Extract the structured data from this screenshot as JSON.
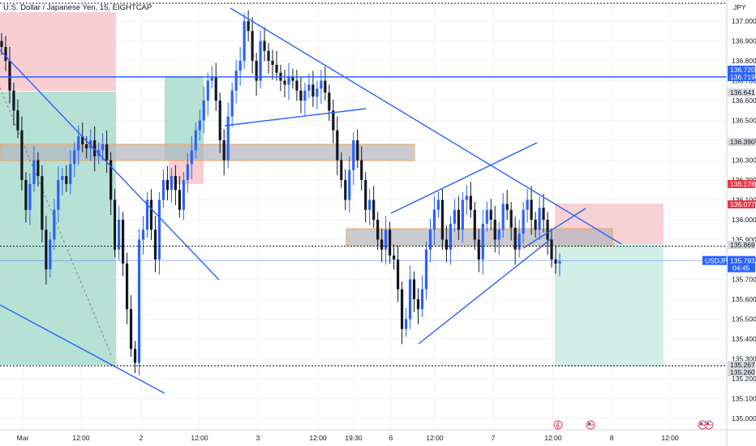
{
  "title": "U.S. Dollar / Japanese Yen, 15, EIGHTCAP",
  "currency": "JPY",
  "chart_data": {
    "type": "candlestick",
    "symbol": "USDJPY",
    "interval": "15",
    "ylim": [
      134.95,
      137.1
    ],
    "y_ticks": [
      "137.000",
      "136.900",
      "136.800",
      "136.700",
      "136.600",
      "136.500",
      "136.400",
      "136.300",
      "136.200",
      "136.100",
      "136.000",
      "135.900",
      "135.800",
      "135.700",
      "135.600",
      "135.500",
      "135.400",
      "135.300",
      "135.200",
      "135.100",
      "135.000"
    ],
    "x_labels": [
      "Mar",
      "12:00",
      "2",
      "12:00",
      "3",
      "12:00",
      "19:30",
      "6",
      "12:00",
      "7",
      "12:00",
      "8",
      "12:00"
    ],
    "price_tags": [
      {
        "label": "136.720",
        "value": 136.72,
        "style": "blue"
      },
      {
        "label": "136.719",
        "value": 136.719,
        "style": "blue"
      },
      {
        "label": "136.641",
        "value": 136.641,
        "style": "dark"
      },
      {
        "label": "136.390",
        "value": 136.39,
        "style": "dark"
      },
      {
        "label": "136.178",
        "value": 136.178,
        "style": "red"
      },
      {
        "label": "136.077",
        "value": 136.077,
        "style": "red"
      },
      {
        "label": "135.869",
        "value": 135.869,
        "style": "dark"
      },
      {
        "label": "135.267",
        "value": 135.267,
        "style": "dark"
      },
      {
        "label": "135.260",
        "value": 135.26,
        "style": "dark"
      }
    ],
    "last_price": {
      "symbol": "USDJPY",
      "value": "135.793",
      "countdown": "04:45"
    },
    "horizontal_levels": [
      136.719,
      135.867,
      135.265
    ],
    "close_series": [
      136.87,
      136.8,
      136.65,
      136.55,
      136.45,
      136.2,
      136.05,
      136.18,
      136.3,
      136.22,
      135.95,
      135.75,
      135.9,
      136.05,
      136.2,
      136.22,
      136.18,
      136.28,
      136.35,
      136.42,
      136.38,
      136.36,
      136.4,
      136.32,
      136.35,
      136.38,
      136.3,
      136.1,
      135.85,
      136.0,
      135.78,
      135.55,
      135.35,
      135.28,
      135.9,
      135.95,
      136.1,
      135.95,
      135.8,
      136.1,
      136.2,
      136.15,
      136.22,
      136.15,
      136.05,
      136.2,
      136.28,
      136.35,
      136.45,
      136.5,
      136.6,
      136.7,
      136.72,
      136.6,
      136.4,
      136.3,
      136.52,
      136.65,
      136.75,
      136.8,
      137.0,
      136.95,
      136.8,
      136.7,
      136.9,
      136.85,
      136.8,
      136.78,
      136.74,
      136.7,
      136.68,
      136.72,
      136.7,
      136.65,
      136.6,
      136.65,
      136.68,
      136.62,
      136.66,
      136.7,
      136.64,
      136.55,
      136.45,
      136.3,
      136.2,
      136.1,
      136.25,
      136.4,
      136.3,
      136.2,
      136.05,
      136.1,
      136.0,
      135.9,
      135.85,
      135.95,
      135.82,
      135.8,
      135.65,
      135.45,
      135.5,
      135.7,
      135.6,
      135.55,
      135.65,
      135.85,
      135.95,
      136.05,
      136.1,
      135.9,
      135.85,
      135.98,
      136.05,
      135.95,
      136.1,
      136.12,
      136.05,
      135.9,
      135.8,
      135.98,
      136.05,
      136.0,
      135.9,
      135.95,
      136.08,
      136.05,
      135.96,
      135.85,
      135.93,
      136.05,
      136.1,
      136.0,
      135.95,
      136.06,
      136.0,
      135.9,
      135.8,
      135.78,
      135.79
    ],
    "series": []
  }
}
